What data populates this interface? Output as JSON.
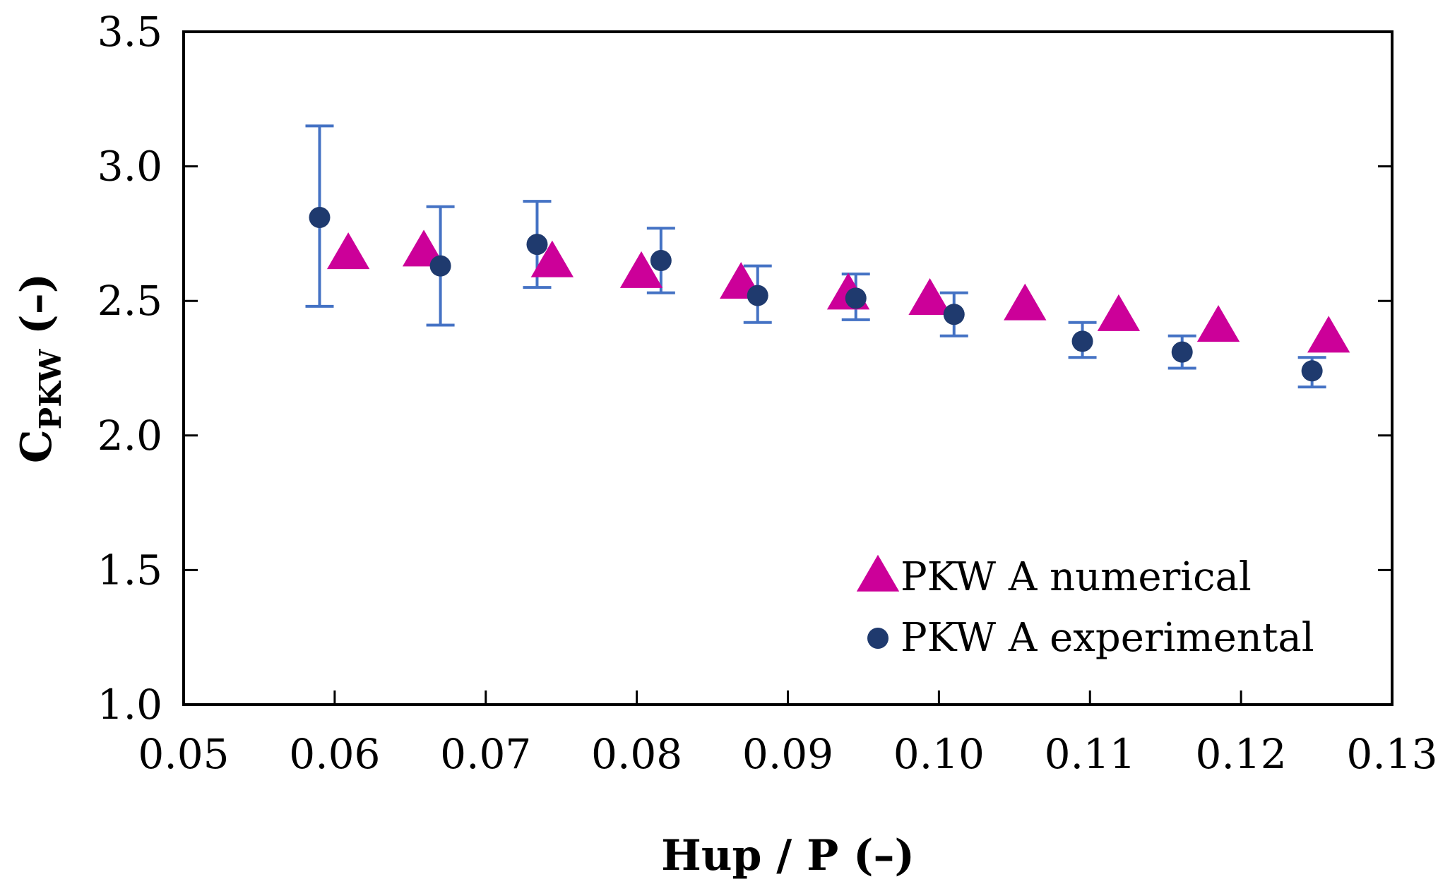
{
  "chart_data": {
    "type": "scatter",
    "title": "",
    "xlabel": "Hup / P (–)",
    "ylabel": {
      "main": "C",
      "subscript": "PKW",
      "suffix": " (–)"
    },
    "xlim": [
      0.05,
      0.13
    ],
    "ylim": [
      1.0,
      3.5
    ],
    "xticks": [
      "0.05",
      "0.06",
      "0.07",
      "0.08",
      "0.09",
      "0.10",
      "0.11",
      "0.12",
      "0.13"
    ],
    "yticks": [
      "1.0",
      "1.5",
      "2.0",
      "2.5",
      "3.0",
      "3.5"
    ],
    "legend_position": "bottom-right",
    "series": [
      {
        "name": "PKW A numerical",
        "marker": "triangle",
        "color": "#cc0099",
        "x": [
          0.0609,
          0.0659,
          0.0744,
          0.0803,
          0.0869,
          0.094,
          0.0994,
          0.1057,
          0.1119,
          0.1185,
          0.1258
        ],
        "y": [
          2.67,
          2.68,
          2.64,
          2.6,
          2.56,
          2.52,
          2.5,
          2.48,
          2.44,
          2.4,
          2.36
        ]
      },
      {
        "name": "PKW A experimental",
        "marker": "circle",
        "color": "#1f3a6e",
        "error_color": "#4472c4",
        "x": [
          0.059,
          0.067,
          0.0734,
          0.0816,
          0.088,
          0.0945,
          0.101,
          0.1095,
          0.1161,
          0.1247
        ],
        "y": [
          2.81,
          2.63,
          2.71,
          2.65,
          2.52,
          2.51,
          2.45,
          2.35,
          2.31,
          2.24
        ],
        "y_low": [
          2.48,
          2.41,
          2.55,
          2.53,
          2.42,
          2.43,
          2.37,
          2.29,
          2.25,
          2.18
        ],
        "y_high": [
          3.15,
          2.85,
          2.87,
          2.77,
          2.63,
          2.6,
          2.53,
          2.42,
          2.37,
          2.29
        ]
      }
    ]
  }
}
